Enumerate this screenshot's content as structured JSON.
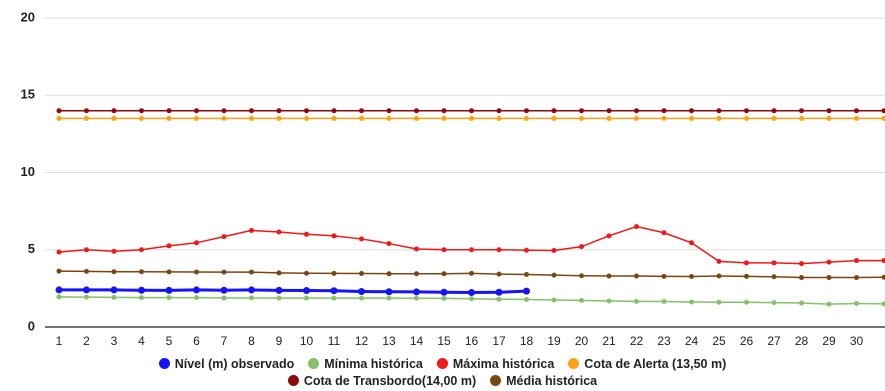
{
  "chart_data": {
    "type": "line",
    "categories": [
      "1",
      "2",
      "3",
      "4",
      "5",
      "6",
      "7",
      "8",
      "9",
      "10",
      "11",
      "12",
      "13",
      "14",
      "15",
      "16",
      "17",
      "18",
      "19",
      "20",
      "21",
      "22",
      "23",
      "24",
      "25",
      "26",
      "27",
      "28",
      "29",
      "30",
      null
    ],
    "ylim": [
      0,
      20
    ],
    "yticks": [
      0,
      5,
      10,
      15,
      20
    ],
    "grid": true,
    "legend": "bottom",
    "series": [
      {
        "name": "Nível (m) observado",
        "color": "#1414f5",
        "values": [
          2.4,
          2.4,
          2.4,
          2.38,
          2.37,
          2.4,
          2.38,
          2.4,
          2.37,
          2.36,
          2.35,
          2.3,
          2.28,
          2.27,
          2.25,
          2.23,
          2.25,
          2.32,
          null,
          null,
          null,
          null,
          null,
          null,
          null,
          null,
          null,
          null,
          null,
          null,
          null
        ]
      },
      {
        "name": "Mínima histórica",
        "color": "#86c06a",
        "values": [
          1.95,
          1.93,
          1.92,
          1.9,
          1.9,
          1.9,
          1.88,
          1.88,
          1.87,
          1.87,
          1.87,
          1.87,
          1.87,
          1.86,
          1.85,
          1.83,
          1.8,
          1.78,
          1.75,
          1.72,
          1.68,
          1.66,
          1.65,
          1.62,
          1.6,
          1.6,
          1.58,
          1.55,
          1.48,
          1.52,
          1.5
        ]
      },
      {
        "name": "Máxima histórica",
        "color": "#f01818",
        "values": [
          4.85,
          5.0,
          4.9,
          5.0,
          5.25,
          5.45,
          5.85,
          6.25,
          6.15,
          6.0,
          5.9,
          5.7,
          5.4,
          5.05,
          5.0,
          5.0,
          5.0,
          4.97,
          4.95,
          5.2,
          5.9,
          6.5,
          6.1,
          5.45,
          4.25,
          4.15,
          4.15,
          4.1,
          4.2,
          4.3,
          4.3
        ]
      },
      {
        "name": "Cota de Alerta (13,50 m)",
        "color": "#ffa21a",
        "values": [
          13.5,
          13.5,
          13.5,
          13.5,
          13.5,
          13.5,
          13.5,
          13.5,
          13.5,
          13.5,
          13.5,
          13.5,
          13.5,
          13.5,
          13.5,
          13.5,
          13.5,
          13.5,
          13.5,
          13.5,
          13.5,
          13.5,
          13.5,
          13.5,
          13.5,
          13.5,
          13.5,
          13.5,
          13.5,
          13.5,
          13.5
        ]
      },
      {
        "name": "Cota de Transbordo(14,00 m)",
        "color": "#8b0a0a",
        "values": [
          14,
          14,
          14,
          14,
          14,
          14,
          14,
          14,
          14,
          14,
          14,
          14,
          14,
          14,
          14,
          14,
          14,
          14,
          14,
          14,
          14,
          14,
          14,
          14,
          14,
          14,
          14,
          14,
          14,
          14,
          14
        ]
      },
      {
        "name": "Média histórica",
        "color": "#7a4614",
        "values": [
          3.62,
          3.6,
          3.58,
          3.58,
          3.57,
          3.56,
          3.55,
          3.55,
          3.5,
          3.48,
          3.47,
          3.46,
          3.45,
          3.45,
          3.45,
          3.47,
          3.42,
          3.4,
          3.36,
          3.32,
          3.3,
          3.3,
          3.28,
          3.27,
          3.3,
          3.28,
          3.25,
          3.2,
          3.2,
          3.2,
          3.22
        ]
      }
    ]
  }
}
